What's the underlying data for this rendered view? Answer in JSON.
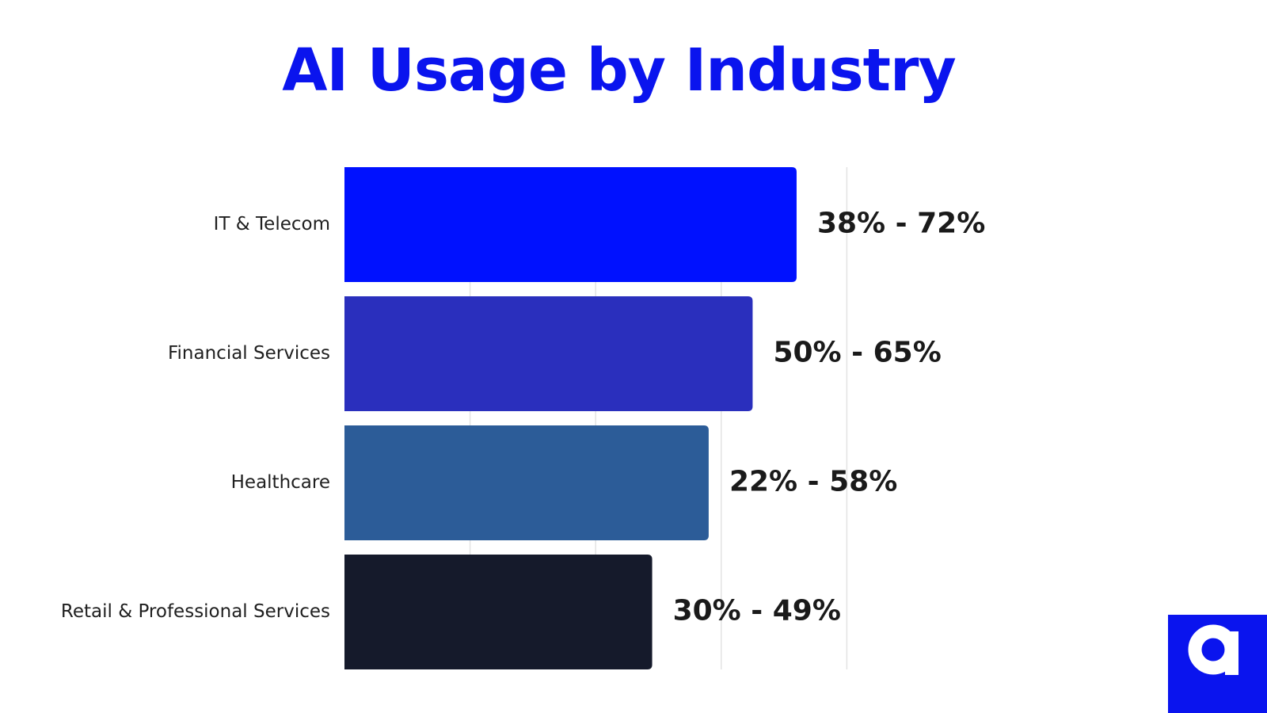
{
  "chart_data": {
    "type": "bar",
    "orientation": "horizontal",
    "title": "AI Usage by Industry",
    "categories": [
      "IT & Telecom",
      "Financial Services",
      "Healthcare",
      "Retail & Professional Services"
    ],
    "range_low": [
      38,
      50,
      22,
      30
    ],
    "range_high": [
      72,
      65,
      58,
      49
    ],
    "values": [
      72,
      65,
      58,
      49
    ],
    "data_labels": [
      "38% - 72%",
      "50% - 65%",
      "22% - 58%",
      "30% - 49%"
    ],
    "bar_colors": [
      "#0011ff",
      "#2a2fbd",
      "#2c5c98",
      "#151a2b"
    ],
    "xlim": [
      0,
      100
    ],
    "grid": true,
    "gridline_values": [
      20,
      40,
      60,
      80
    ],
    "legend": "none"
  },
  "colors": {
    "title": "#0a14ee",
    "category_text": "#1f1f1f",
    "value_text": "#1a1a1a",
    "gridline": "#e3e3e3",
    "logo_bg": "#0a14ee",
    "logo_glyph": "#ffffff"
  },
  "logo": {
    "icon": "letter-a-logo-icon"
  }
}
